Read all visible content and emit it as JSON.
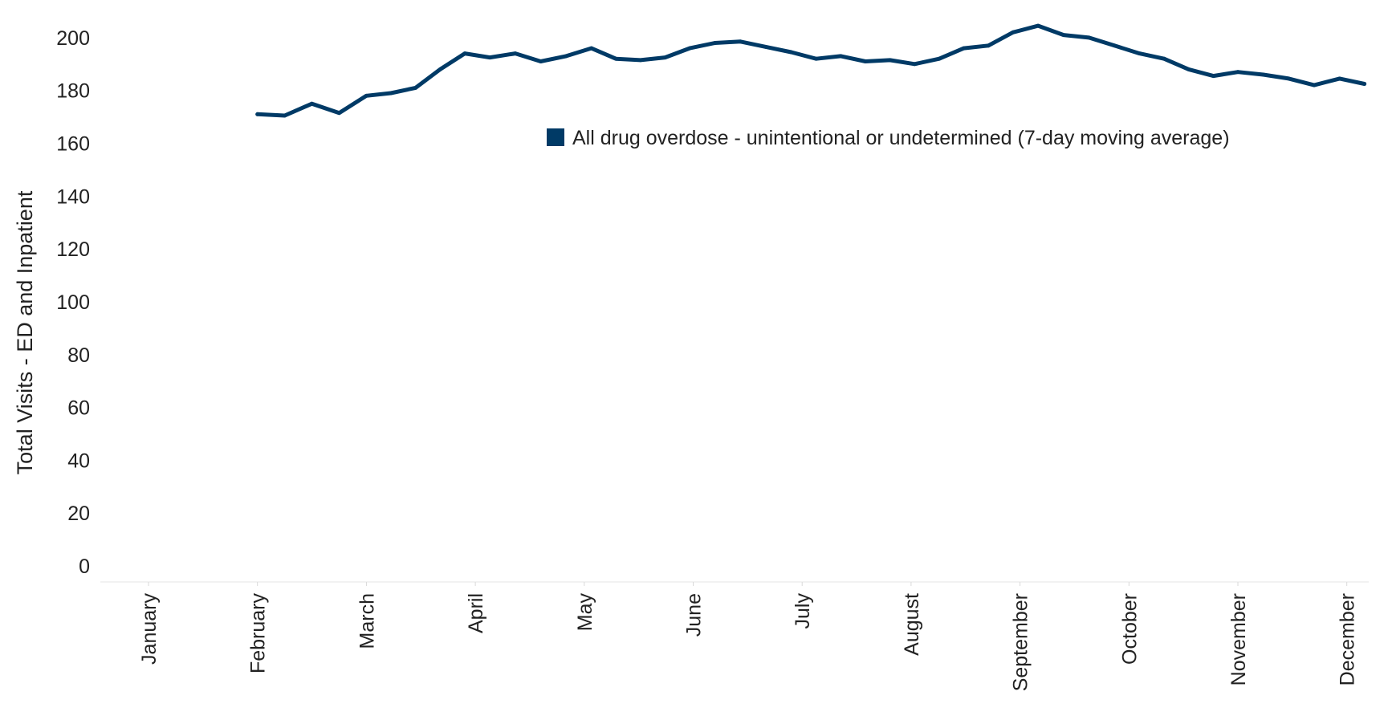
{
  "chart_data": {
    "type": "line",
    "ylabel": "Total Visits - ED and Inpatient",
    "ylim": [
      0,
      210
    ],
    "yticks": [
      0,
      20,
      40,
      60,
      80,
      100,
      120,
      140,
      160,
      180,
      200
    ],
    "xticks": [
      "January",
      "February",
      "March",
      "April",
      "May",
      "June",
      "July",
      "August",
      "September",
      "October",
      "November",
      "December"
    ],
    "grid": false,
    "legend_position": "top-right",
    "series": [
      {
        "name": "All drug overdose - unintentional or undetermined (7-day moving average)",
        "color": "#003a66",
        "x": [
          "2021-02-01",
          "2021-02-08",
          "2021-02-15",
          "2021-02-22",
          "2021-03-01",
          "2021-03-08",
          "2021-03-15",
          "2021-03-22",
          "2021-03-29",
          "2021-04-05",
          "2021-04-12",
          "2021-04-19",
          "2021-04-26",
          "2021-05-03",
          "2021-05-10",
          "2021-05-17",
          "2021-05-24",
          "2021-05-31",
          "2021-06-07",
          "2021-06-14",
          "2021-06-21",
          "2021-06-28",
          "2021-07-05",
          "2021-07-12",
          "2021-07-19",
          "2021-07-26",
          "2021-08-02",
          "2021-08-09",
          "2021-08-16",
          "2021-08-23",
          "2021-08-30",
          "2021-09-06",
          "2021-09-13",
          "2021-09-20",
          "2021-09-27",
          "2021-10-04",
          "2021-10-11",
          "2021-10-18",
          "2021-10-25",
          "2021-11-01",
          "2021-11-08",
          "2021-11-15",
          "2021-11-22",
          "2021-11-29",
          "2021-12-06"
        ],
        "values": [
          171,
          170.5,
          175,
          171.5,
          178,
          179,
          181,
          188,
          194,
          192.5,
          194,
          191,
          193,
          196,
          192,
          191.5,
          192.5,
          196,
          198,
          198.5,
          196.5,
          194.5,
          192,
          193,
          191,
          191.5,
          190,
          192,
          196,
          197,
          202,
          204.5,
          201,
          200,
          197,
          194,
          192,
          188,
          185.5,
          187,
          186,
          184.5,
          182,
          184.5,
          182.5
        ]
      }
    ]
  }
}
